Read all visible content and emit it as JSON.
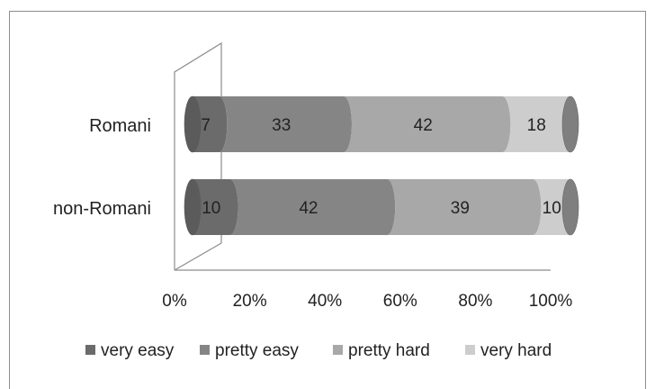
{
  "chart_data": {
    "type": "bar",
    "orientation": "horizontal",
    "stacked": "percent",
    "style": "3d-cylinder",
    "categories": [
      "Romani",
      "non-Romani"
    ],
    "series": [
      {
        "name": "very easy",
        "values": [
          7,
          10
        ],
        "color": "#6b6b6b"
      },
      {
        "name": "pretty easy",
        "values": [
          33,
          42
        ],
        "color": "#858585"
      },
      {
        "name": "pretty hard",
        "values": [
          42,
          39
        ],
        "color": "#a8a8a8"
      },
      {
        "name": "very hard",
        "values": [
          18,
          10
        ],
        "color": "#cdcdcd"
      }
    ],
    "x_ticks": [
      "0%",
      "20%",
      "40%",
      "60%",
      "80%",
      "100%"
    ],
    "xlim": [
      0,
      100
    ],
    "legend": "bottom",
    "grid": false
  }
}
